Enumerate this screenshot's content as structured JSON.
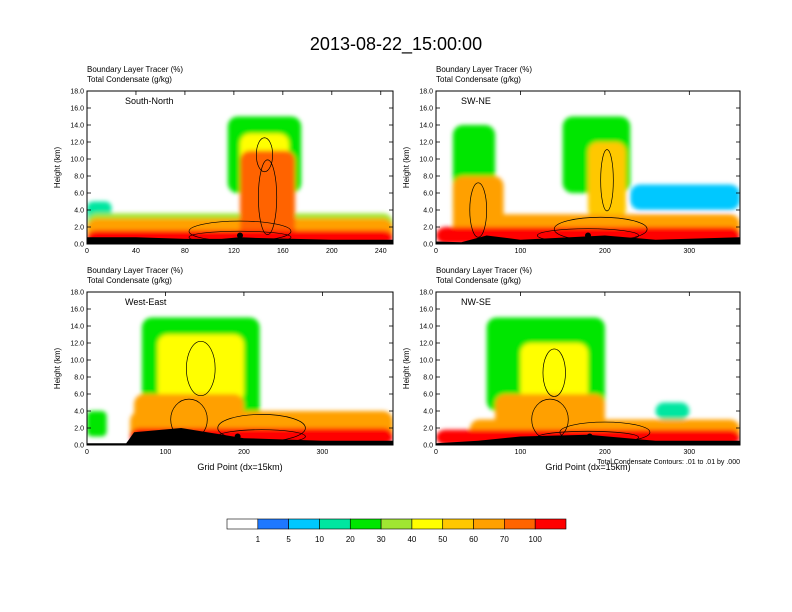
{
  "figure": {
    "title": "2013-08-22_15:00:00",
    "footnote": "Total Condensate Contours: .01 to .01 by .000"
  },
  "colorbar": {
    "colors": [
      "#ffffff",
      "#1e78ff",
      "#00c8ff",
      "#00e6a0",
      "#00e600",
      "#a0e632",
      "#ffff00",
      "#ffc800",
      "#ffa000",
      "#ff6400",
      "#ff0000"
    ],
    "labels": [
      "1",
      "5",
      "10",
      "20",
      "30",
      "40",
      "50",
      "60",
      "70",
      "100"
    ]
  },
  "chart_data": [
    {
      "type": "heatmap",
      "panel": "top-left",
      "headers": [
        "Boundary Layer Tracer    (%)",
        "Total Condensate    (g/kg)"
      ],
      "label": "South-North",
      "ylabel": "Height (km)",
      "xlabel": "",
      "xlim": [
        0,
        250
      ],
      "ylim": [
        0,
        18
      ],
      "xticks": [
        0,
        40,
        80,
        120,
        160,
        200,
        240
      ],
      "yticks": [
        "0.0",
        "2.0",
        "4.0",
        "6.0",
        "8.0",
        "10.0",
        "12.0",
        "14.0",
        "16.0",
        "18.0"
      ],
      "terrain": [
        [
          0,
          0.8
        ],
        [
          40,
          0.8
        ],
        [
          80,
          0.6
        ],
        [
          110,
          0.6
        ],
        [
          125,
          0.8
        ],
        [
          140,
          0.7
        ],
        [
          200,
          0.5
        ],
        [
          250,
          0.5
        ]
      ],
      "blobs": [
        {
          "x": [
            0,
            250
          ],
          "y": [
            0,
            1.6
          ],
          "level": 10
        },
        {
          "x": [
            0,
            250
          ],
          "y": [
            0,
            3.0
          ],
          "level": 8
        },
        {
          "x": [
            0,
            250
          ],
          "y": [
            0,
            3.6
          ],
          "level": 5
        },
        {
          "x": [
            125,
            170
          ],
          "y": [
            0,
            11
          ],
          "level": 9
        },
        {
          "x": [
            115,
            175
          ],
          "y": [
            6,
            15
          ],
          "level": 4
        },
        {
          "x": [
            125,
            165
          ],
          "y": [
            8,
            13
          ],
          "level": 6
        },
        {
          "x": [
            0,
            20
          ],
          "y": [
            2,
            5
          ],
          "level": 3
        }
      ],
      "marker": {
        "x": 125,
        "y": 1.0
      }
    },
    {
      "type": "heatmap",
      "panel": "top-right",
      "headers": [
        "Boundary Layer Tracer    (%)",
        "Total Condensate    (g/kg)"
      ],
      "label": "SW-NE",
      "ylabel": "Height (km)",
      "xlabel": "",
      "xlim": [
        0,
        360
      ],
      "ylim": [
        0,
        18
      ],
      "xticks": [
        0,
        100,
        200,
        300
      ],
      "yticks": [
        "0.0",
        "2.0",
        "4.0",
        "6.0",
        "8.0",
        "10.0",
        "12.0",
        "14.0",
        "16.0",
        "18.0"
      ],
      "terrain": [
        [
          0,
          0.3
        ],
        [
          30,
          0.2
        ],
        [
          60,
          1.0
        ],
        [
          100,
          0.5
        ],
        [
          200,
          1.0
        ],
        [
          260,
          0.5
        ],
        [
          360,
          0.8
        ]
      ],
      "blobs": [
        {
          "x": [
            0,
            360
          ],
          "y": [
            0,
            2.0
          ],
          "level": 10
        },
        {
          "x": [
            30,
            360
          ],
          "y": [
            0,
            3.5
          ],
          "level": 8
        },
        {
          "x": [
            20,
            80
          ],
          "y": [
            0,
            8
          ],
          "level": 8
        },
        {
          "x": [
            20,
            70
          ],
          "y": [
            3,
            14
          ],
          "level": 4
        },
        {
          "x": [
            150,
            230
          ],
          "y": [
            6,
            15
          ],
          "level": 4
        },
        {
          "x": [
            180,
            225
          ],
          "y": [
            3,
            12
          ],
          "level": 7
        },
        {
          "x": [
            230,
            360
          ],
          "y": [
            4,
            7
          ],
          "level": 2
        }
      ],
      "marker": {
        "x": 180,
        "y": 1.0
      }
    },
    {
      "type": "heatmap",
      "panel": "bottom-left",
      "headers": [
        "Boundary Layer Tracer    (%)",
        "Total Condensate    (g/kg)"
      ],
      "label": "West-East",
      "ylabel": "Height (km)",
      "xlabel": "Grid Point  (dx=15km)",
      "xlim": [
        0,
        390
      ],
      "ylim": [
        0,
        18
      ],
      "xticks": [
        0,
        100,
        200,
        300
      ],
      "yticks": [
        "0.0",
        "2.0",
        "4.0",
        "6.0",
        "8.0",
        "10.0",
        "12.0",
        "14.0",
        "16.0",
        "18.0"
      ],
      "terrain": [
        [
          0,
          0.2
        ],
        [
          50,
          0.2
        ],
        [
          60,
          1.5
        ],
        [
          120,
          2.0
        ],
        [
          200,
          0.8
        ],
        [
          300,
          0.5
        ],
        [
          390,
          0.5
        ]
      ],
      "blobs": [
        {
          "x": [
            55,
            390
          ],
          "y": [
            0,
            2.0
          ],
          "level": 10
        },
        {
          "x": [
            55,
            390
          ],
          "y": [
            0,
            4.0
          ],
          "level": 8
        },
        {
          "x": [
            60,
            200
          ],
          "y": [
            0,
            6
          ],
          "level": 8
        },
        {
          "x": [
            70,
            220
          ],
          "y": [
            3,
            15
          ],
          "level": 4
        },
        {
          "x": [
            90,
            200
          ],
          "y": [
            5,
            13
          ],
          "level": 6
        },
        {
          "x": [
            0,
            25
          ],
          "y": [
            1,
            4
          ],
          "level": 4
        }
      ],
      "marker": {
        "x": 192,
        "y": 1.0
      }
    },
    {
      "type": "heatmap",
      "panel": "bottom-right",
      "headers": [
        "Boundary Layer Tracer    (%)",
        "Total Condensate    (g/kg)"
      ],
      "label": "NW-SE",
      "ylabel": "Height (km)",
      "xlabel": "Grid Point  (dx=15km)",
      "xlim": [
        0,
        360
      ],
      "ylim": [
        0,
        18
      ],
      "xticks": [
        0,
        100,
        200,
        300
      ],
      "yticks": [
        "0.0",
        "2.0",
        "4.0",
        "6.0",
        "8.0",
        "10.0",
        "12.0",
        "14.0",
        "16.0",
        "18.0"
      ],
      "terrain": [
        [
          0,
          0.2
        ],
        [
          50,
          0.5
        ],
        [
          100,
          1.0
        ],
        [
          180,
          1.2
        ],
        [
          260,
          0.5
        ],
        [
          360,
          0.5
        ]
      ],
      "blobs": [
        {
          "x": [
            0,
            360
          ],
          "y": [
            0,
            1.8
          ],
          "level": 10
        },
        {
          "x": [
            40,
            360
          ],
          "y": [
            0,
            3.0
          ],
          "level": 8
        },
        {
          "x": [
            70,
            200
          ],
          "y": [
            0,
            6
          ],
          "level": 8
        },
        {
          "x": [
            60,
            200
          ],
          "y": [
            4,
            15
          ],
          "level": 4
        },
        {
          "x": [
            100,
            180
          ],
          "y": [
            5,
            12
          ],
          "level": 6
        },
        {
          "x": [
            260,
            300
          ],
          "y": [
            3,
            5
          ],
          "level": 3
        }
      ],
      "marker": {
        "x": 182,
        "y": 1.0
      }
    }
  ]
}
